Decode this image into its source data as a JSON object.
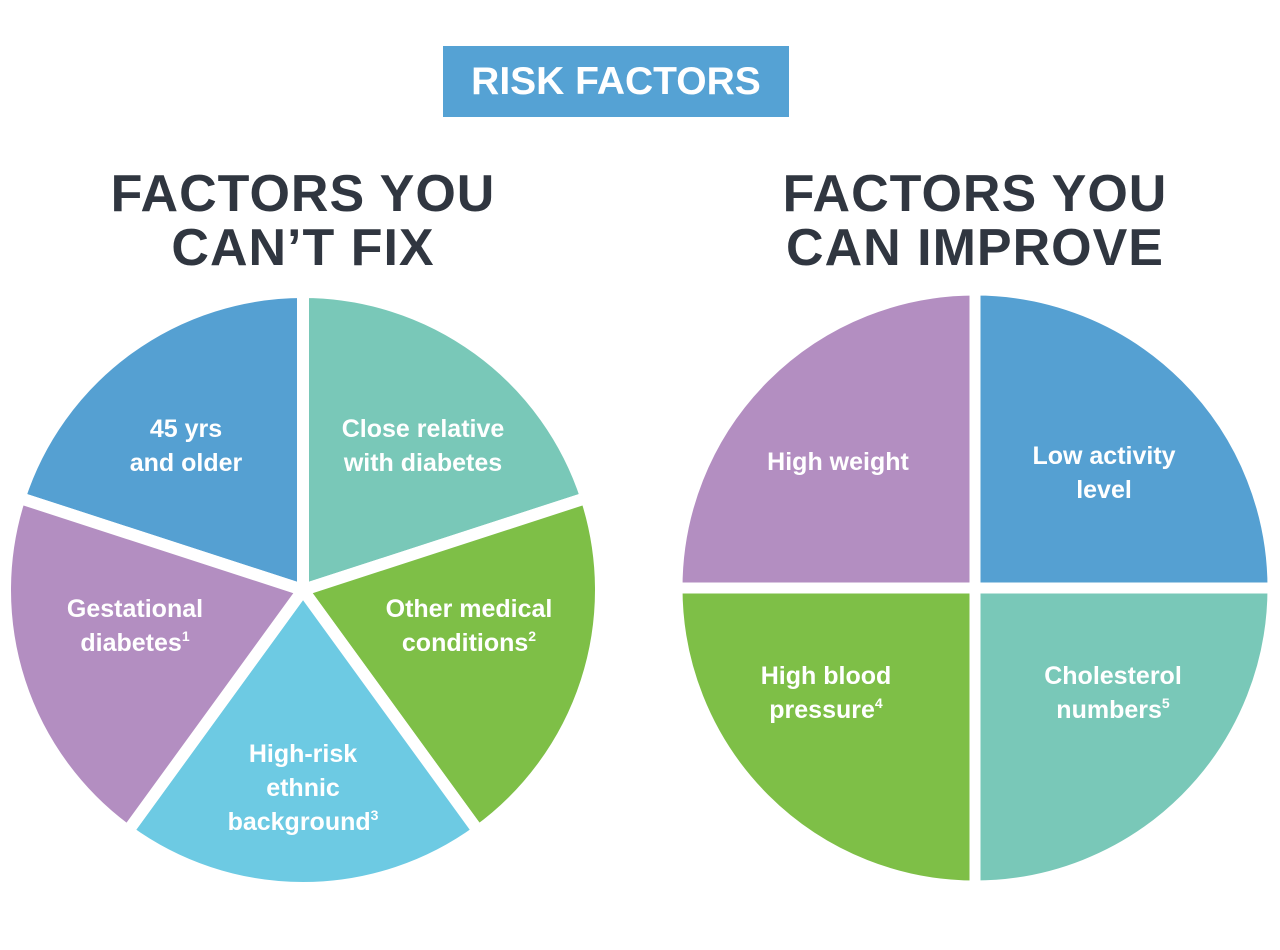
{
  "banner": {
    "text": "RISK FACTORS",
    "color": "#55a2d4"
  },
  "left_heading": {
    "line1": "FACTORS YOU",
    "line2": "CAN’T FIX"
  },
  "right_heading": {
    "line1": "FACTORS YOU",
    "line2": "CAN IMPROVE"
  },
  "colors": {
    "blue": "#55a0d2",
    "teal": "#79c8b8",
    "green": "#7ebf47",
    "light_blue": "#6dcae3",
    "purple": "#b38ec1",
    "heading_text": "#303640"
  },
  "left_pie": {
    "segments": [
      {
        "name": "age",
        "lines": [
          "45 yrs",
          "and older"
        ],
        "sup": "",
        "color": "#55a0d2"
      },
      {
        "name": "relative",
        "lines": [
          "Close relative",
          "with diabetes"
        ],
        "sup": "",
        "color": "#79c8b8"
      },
      {
        "name": "medical",
        "lines": [
          "Other medical",
          "conditions"
        ],
        "sup": "2",
        "color": "#7ebf47"
      },
      {
        "name": "ethnic",
        "lines": [
          "High-risk",
          "ethnic",
          "background"
        ],
        "sup": "3",
        "color": "#6dcae3"
      },
      {
        "name": "gestational",
        "lines": [
          "Gestational",
          "diabetes"
        ],
        "sup": "1",
        "color": "#b38ec1"
      }
    ]
  },
  "right_pie": {
    "segments": [
      {
        "name": "weight",
        "lines": [
          "High weight"
        ],
        "sup": "",
        "color": "#b38ec1"
      },
      {
        "name": "activity",
        "lines": [
          "Low activity",
          "level"
        ],
        "sup": "",
        "color": "#55a0d2"
      },
      {
        "name": "blood-pressure",
        "lines": [
          "High blood",
          "pressure"
        ],
        "sup": "4",
        "color": "#7ebf47"
      },
      {
        "name": "cholesterol",
        "lines": [
          "Cholesterol",
          "numbers"
        ],
        "sup": "5",
        "color": "#79c8b8"
      }
    ]
  }
}
